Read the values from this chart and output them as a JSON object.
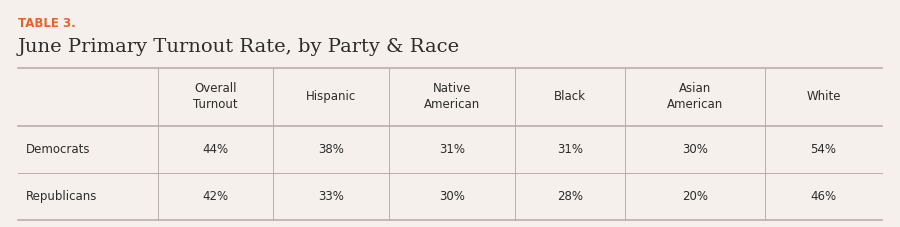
{
  "table_label": "TABLE 3.",
  "title": "June Primary Turnout Rate, by Party & Race",
  "col_headers": [
    "Overall\nTurnout",
    "Hispanic",
    "Native\nAmerican",
    "Black",
    "Asian\nAmerican",
    "White"
  ],
  "row_headers": [
    "Democrats",
    "Republicans"
  ],
  "data": [
    [
      "44%",
      "38%",
      "31%",
      "31%",
      "30%",
      "54%"
    ],
    [
      "42%",
      "33%",
      "30%",
      "28%",
      "20%",
      "46%"
    ]
  ],
  "background_color": "#f5f0eb",
  "table_label_color": "#e8622a",
  "title_color": "#2c2c2c",
  "header_text_color": "#2c2c2c",
  "row_header_color": "#2c2c2c",
  "data_color": "#2c2c2c",
  "line_color": "#b8b0a8",
  "fig_width": 9.0,
  "fig_height": 2.27,
  "dpi": 100
}
